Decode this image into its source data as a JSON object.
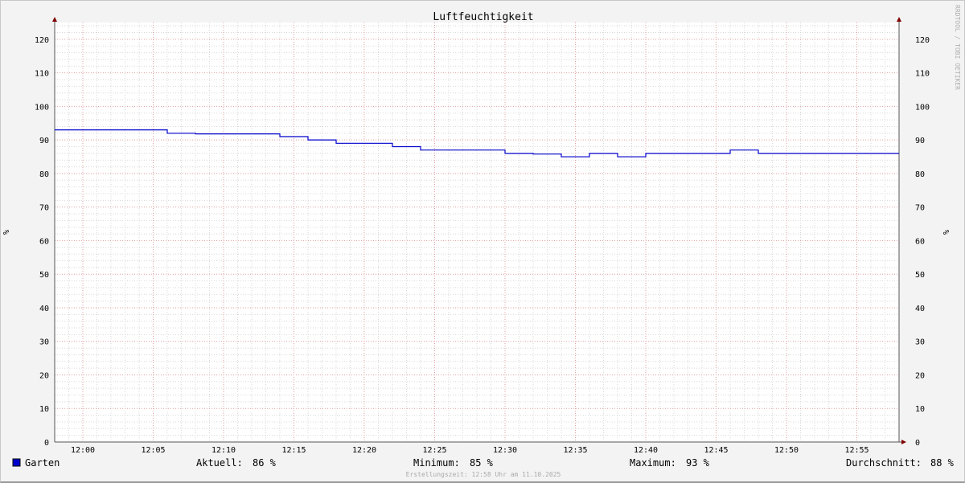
{
  "chart_data": {
    "type": "line",
    "title": "Luftfeuchtigkeit",
    "ylabel": "%",
    "ylim": [
      0,
      125
    ],
    "yticks": [
      0,
      10,
      20,
      30,
      40,
      50,
      60,
      70,
      80,
      90,
      100,
      110,
      120
    ],
    "xlim": [
      "11:58",
      "12:58"
    ],
    "xticks": [
      "12:00",
      "12:05",
      "12:10",
      "12:15",
      "12:20",
      "12:25",
      "12:30",
      "12:35",
      "12:40",
      "12:45",
      "12:50",
      "12:55"
    ],
    "grid": true,
    "series": [
      {
        "name": "Garten",
        "color": "#0000cc",
        "step": true,
        "x": [
          "11:58",
          "12:06",
          "12:08",
          "12:14",
          "12:16",
          "12:18",
          "12:22",
          "12:24",
          "12:30",
          "12:32",
          "12:34",
          "12:36",
          "12:38",
          "12:40",
          "12:46",
          "12:48",
          "12:58"
        ],
        "values": [
          93,
          92,
          91.8,
          91,
          90,
          89,
          88,
          87,
          86,
          85.8,
          85,
          86,
          85,
          86,
          87,
          86,
          86
        ]
      }
    ],
    "legend": {
      "placement": "bottom",
      "items": [
        {
          "label": "Aktuell:",
          "value": "86 %"
        },
        {
          "label": "Minimum:",
          "value": "85 %"
        },
        {
          "label": "Maximum:",
          "value": "93 %"
        },
        {
          "label": "Durchschnitt:",
          "value": "88 %"
        }
      ]
    },
    "footer": "Erstellungszeit: 12:58 Uhr am 11.10.2025",
    "watermark": "RRDTOOL / TOBI OETIKER"
  }
}
